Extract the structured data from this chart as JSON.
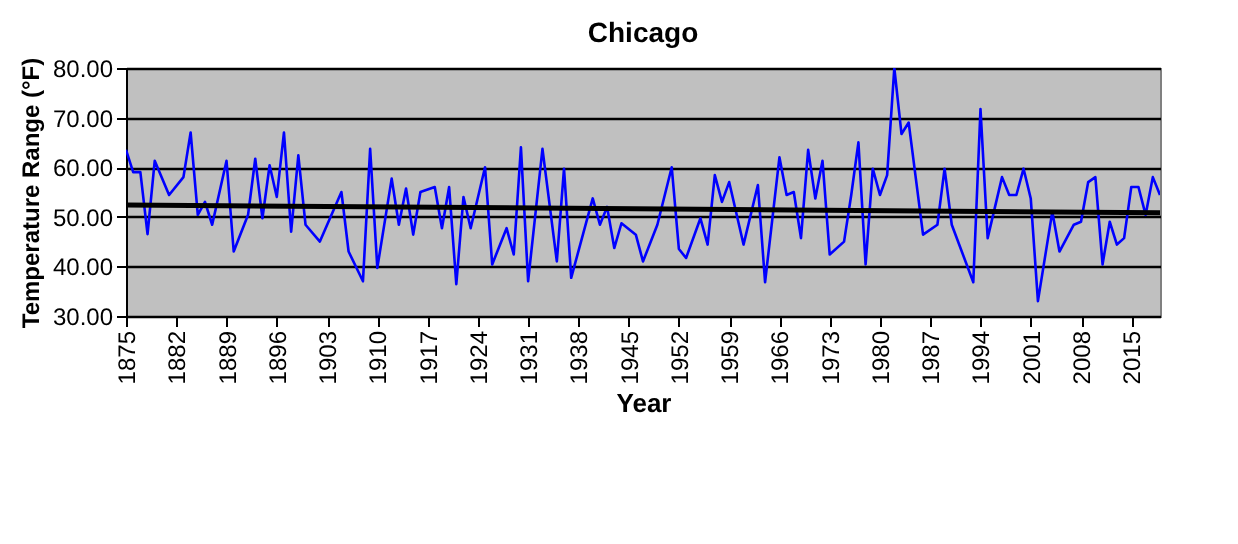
{
  "chart_data": {
    "type": "line",
    "title": "Chicago",
    "xlabel": "Year",
    "ylabel": "Temperature Range (°F)",
    "xlim": [
      1875,
      2019
    ],
    "xticks": [
      1875,
      1882,
      1889,
      1896,
      1903,
      1910,
      1917,
      1924,
      1931,
      1938,
      1945,
      1952,
      1959,
      1966,
      1973,
      1980,
      1987,
      1994,
      2001,
      2008,
      2015
    ],
    "ylim": [
      30,
      80
    ],
    "yticks": [
      {
        "value": 30,
        "label": "30.00"
      },
      {
        "value": 40,
        "label": "40.00"
      },
      {
        "value": 50,
        "label": "50.00"
      },
      {
        "value": 60,
        "label": "60.00"
      },
      {
        "value": 70,
        "label": "70.00"
      },
      {
        "value": 80,
        "label": "80.00"
      }
    ],
    "grid": "y",
    "marker": "none",
    "line_style": "solid",
    "series": [
      {
        "color": "#0000ff",
        "x": [
          1875,
          1876,
          1877,
          1878,
          1879,
          1881,
          1883,
          1884,
          1885,
          1886,
          1887,
          1889,
          1890,
          1892,
          1893,
          1894,
          1895,
          1896,
          1897,
          1898,
          1899,
          1900,
          1902,
          1905,
          1906,
          1908,
          1909,
          1910,
          1912,
          1913,
          1914,
          1915,
          1916,
          1918,
          1919,
          1920,
          1921,
          1922,
          1923,
          1925,
          1926,
          1928,
          1929,
          1930,
          1931,
          1933,
          1935,
          1936,
          1937,
          1940,
          1941,
          1942,
          1943,
          1944,
          1946,
          1947,
          1949,
          1951,
          1952,
          1953,
          1955,
          1956,
          1957,
          1958,
          1959,
          1961,
          1963,
          1964,
          1966,
          1967,
          1968,
          1969,
          1970,
          1971,
          1972,
          1973,
          1975,
          1976,
          1977,
          1978,
          1979,
          1980,
          1981,
          1982,
          1983,
          1984,
          1986,
          1988,
          1989,
          1990,
          1993,
          1994,
          1995,
          1997,
          1998,
          1999,
          2000,
          2001,
          2002,
          2004,
          2005,
          2007,
          2008,
          2009,
          2010,
          2011,
          2012,
          2013,
          2014,
          2015,
          2016,
          2017,
          2018,
          2019
        ],
        "values": [
          63.5,
          59,
          59,
          46.5,
          61.3,
          54.4,
          58,
          67,
          50.4,
          53,
          48.4,
          61.3,
          43,
          50.4,
          61.7,
          49.7,
          60.4,
          54,
          67,
          47,
          62.4,
          48.4,
          45,
          55,
          43,
          37,
          63.7,
          39.7,
          57.7,
          48.4,
          55.7,
          46.4,
          55,
          56,
          47.7,
          56,
          36.4,
          54,
          47.7,
          60,
          40.4,
          47.7,
          42.4,
          64,
          37,
          63.7,
          41,
          59.7,
          37.7,
          53.7,
          48.4,
          52,
          43.7,
          48.7,
          46.4,
          41,
          48.4,
          60,
          43.5,
          41.7,
          49.7,
          44.4,
          58.4,
          53,
          57,
          44.4,
          56.4,
          36.8,
          62,
          54.4,
          55,
          45.7,
          63.5,
          53.7,
          61.3,
          42.4,
          45,
          54.4,
          65,
          40.4,
          59.7,
          54.4,
          58.4,
          80,
          66.7,
          69,
          46.4,
          48.4,
          59.7,
          48.4,
          36.8,
          71.7,
          45.7,
          58,
          54.4,
          54.4,
          59.7,
          53.7,
          33,
          51,
          43,
          48.4,
          49,
          57,
          58,
          40.4,
          49,
          44.4,
          45.7,
          56,
          56,
          50.4,
          58,
          54.4
        ]
      },
      {
        "color": "#000000",
        "type": "line",
        "x": [
          1875,
          2019
        ],
        "values": [
          52.4,
          50.8
        ]
      }
    ]
  }
}
